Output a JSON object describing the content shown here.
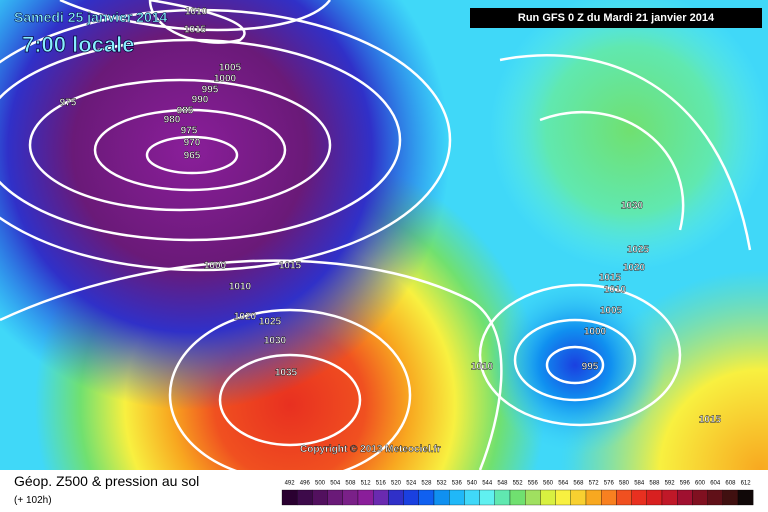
{
  "header": {
    "date": "Samedi 25 janvier 2014",
    "time": "7:00 locale",
    "run": "Run GFS 0 Z du Mardi 21 janvier 2014"
  },
  "copyright": "Copyright © 2013 Meteociel.fr",
  "footer": {
    "title": "Géop. Z500 & pression au sol",
    "lead": "(+ 102h)"
  },
  "legend": [
    {
      "value": "492",
      "color": "#2a0030"
    },
    {
      "value": "496",
      "color": "#3d0a4a"
    },
    {
      "value": "500",
      "color": "#52105e"
    },
    {
      "value": "504",
      "color": "#6a1a78"
    },
    {
      "value": "508",
      "color": "#7a2088"
    },
    {
      "value": "512",
      "color": "#8a1e9a"
    },
    {
      "value": "516",
      "color": "#6a2ab0"
    },
    {
      "value": "520",
      "color": "#3030c8"
    },
    {
      "value": "524",
      "color": "#1a40e0"
    },
    {
      "value": "528",
      "color": "#1060f0"
    },
    {
      "value": "532",
      "color": "#1090f0"
    },
    {
      "value": "536",
      "color": "#20b8f8"
    },
    {
      "value": "540",
      "color": "#40d8f8"
    },
    {
      "value": "544",
      "color": "#60f0f0"
    },
    {
      "value": "548",
      "color": "#60e8b0"
    },
    {
      "value": "552",
      "color": "#70e070"
    },
    {
      "value": "556",
      "color": "#a0e060"
    },
    {
      "value": "560",
      "color": "#d8f040"
    },
    {
      "value": "564",
      "color": "#f8f040"
    },
    {
      "value": "568",
      "color": "#f8d030"
    },
    {
      "value": "572",
      "color": "#f8a820"
    },
    {
      "value": "576",
      "color": "#f88020"
    },
    {
      "value": "580",
      "color": "#f05020"
    },
    {
      "value": "584",
      "color": "#e83020"
    },
    {
      "value": "588",
      "color": "#d82020"
    },
    {
      "value": "592",
      "color": "#c01828"
    },
    {
      "value": "596",
      "color": "#a01030"
    },
    {
      "value": "600",
      "color": "#801020"
    },
    {
      "value": "604",
      "color": "#601018"
    },
    {
      "value": "608",
      "color": "#401010"
    },
    {
      "value": "612",
      "color": "#100808"
    }
  ],
  "isobar_labels": [
    "1010",
    "1015",
    "1005",
    "1000",
    "995",
    "990",
    "975",
    "985",
    "980",
    "975",
    "970",
    "965",
    "1030",
    "1025",
    "1020",
    "1000",
    "1015",
    "1015",
    "1010",
    "1010",
    "1005",
    "1020",
    "1025",
    "1000",
    "1030",
    "995",
    "1010",
    "1035",
    "1015"
  ]
}
